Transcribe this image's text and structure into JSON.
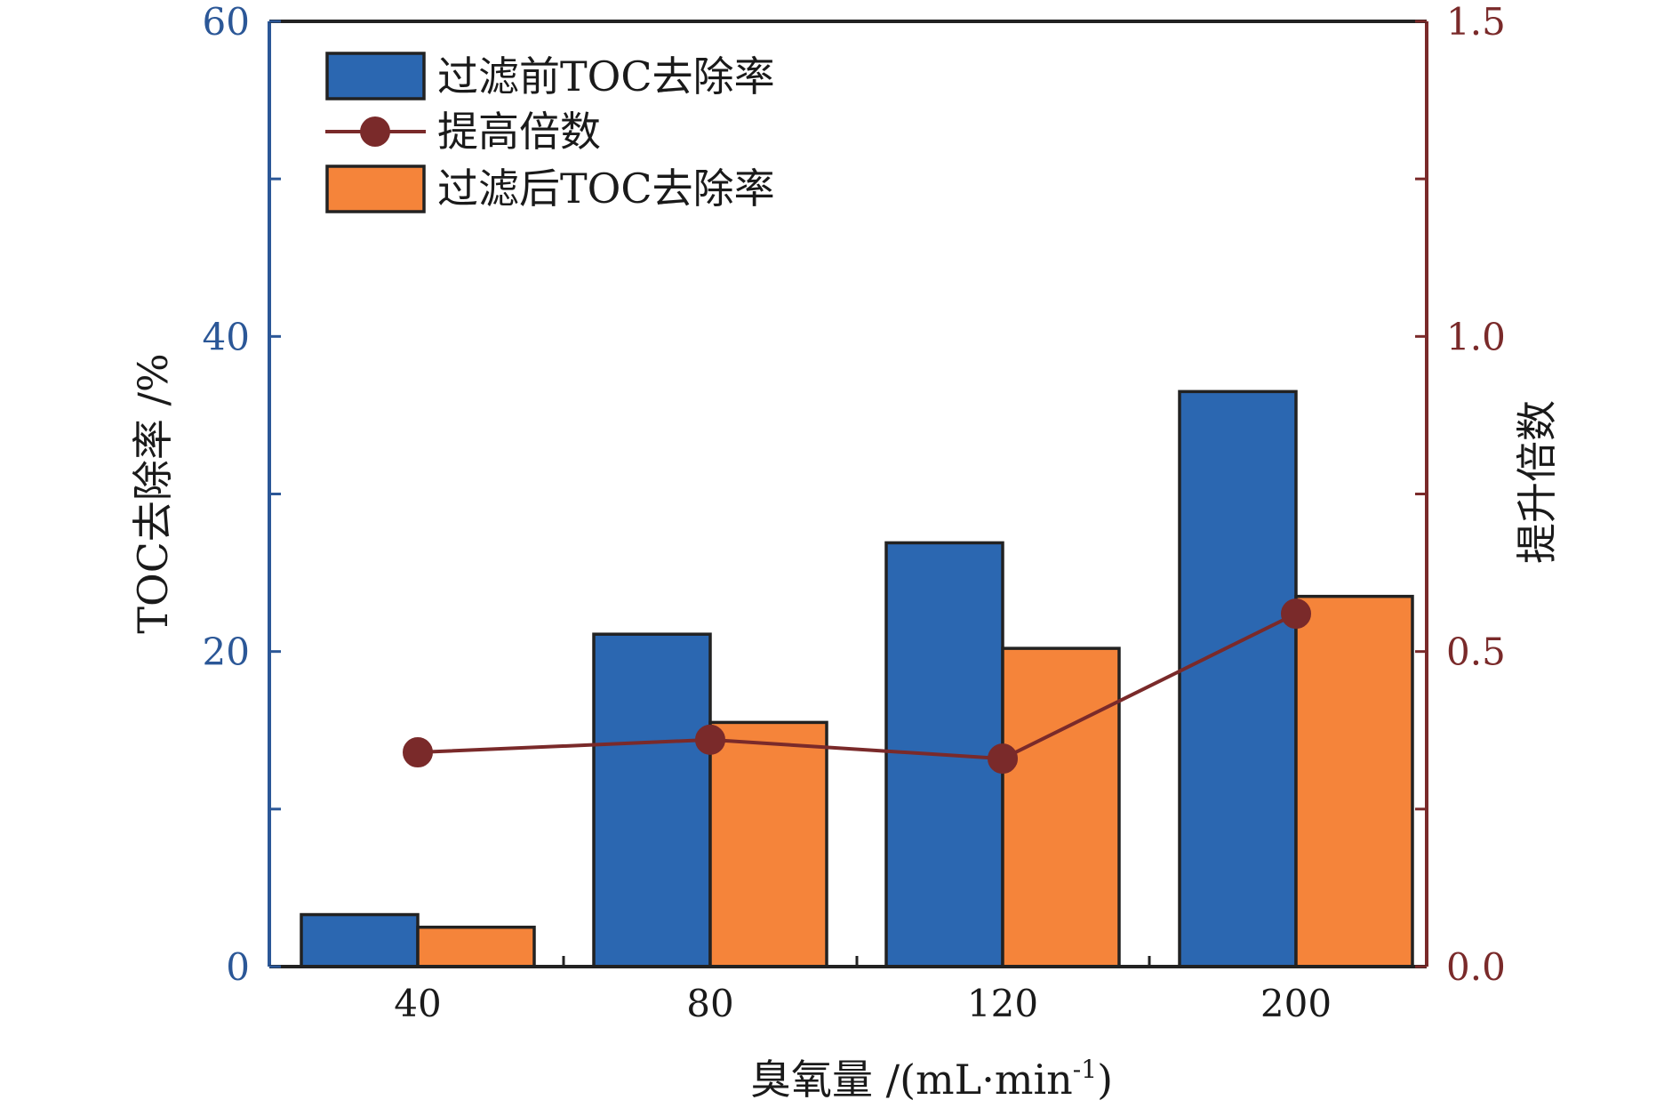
{
  "chart_data": {
    "type": "bar",
    "categories": [
      "40",
      "80",
      "120",
      "200"
    ],
    "series": [
      {
        "name": "过滤前TOC去除率",
        "type": "bar",
        "axis": "left",
        "values": [
          3.3,
          21.1,
          26.9,
          36.5
        ],
        "color": "#2b67b1"
      },
      {
        "name": "过滤后TOC去除率",
        "type": "bar",
        "axis": "left",
        "values": [
          2.5,
          15.5,
          20.2,
          23.5
        ],
        "color": "#f5843a"
      },
      {
        "name": "提高倍数",
        "type": "line",
        "axis": "right",
        "values": [
          0.34,
          0.36,
          0.33,
          0.56
        ],
        "color": "#7a2a2a"
      }
    ],
    "xlabel": "臭氧量 /(mL·min",
    "xlabel_sup": "-1",
    "xlabel_tail": ")",
    "ylabel": "TOC去除率 /%",
    "y2label": "提升倍数",
    "ylim": [
      0,
      60
    ],
    "y2lim": [
      0,
      1.5
    ],
    "yticks": [
      "0",
      "20",
      "40",
      "60"
    ],
    "y2ticks": [
      "0.0",
      "0.5",
      "1.0",
      "1.5"
    ],
    "legend_position": "top-left",
    "grid": false,
    "left_axis_color": "#2b5797",
    "right_axis_color": "#7a2a2a"
  }
}
